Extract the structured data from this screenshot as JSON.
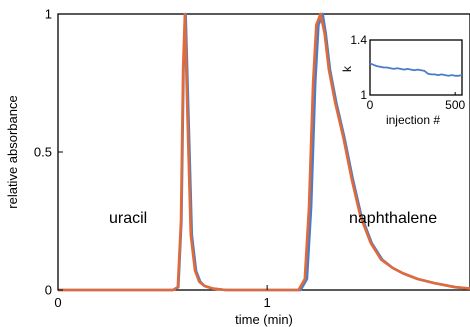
{
  "chart_data": [
    {
      "type": "line",
      "title": "",
      "xlabel": "time (min)",
      "ylabel": "relative absorbance",
      "xlim": [
        0,
        1.97
      ],
      "ylim": [
        0,
        1
      ],
      "x_ticks": [
        {
          "value": 0,
          "label": "0"
        },
        {
          "value": 1,
          "label": "1"
        }
      ],
      "y_ticks": [
        {
          "value": 0,
          "label": "0"
        },
        {
          "value": 0.5,
          "label": "0.5"
        },
        {
          "value": 1,
          "label": "1"
        }
      ],
      "grid": false,
      "series_colors": [
        "#4a7dc9",
        "#e06a3a"
      ],
      "annotations": [
        {
          "text": "uracil",
          "x": 0.3,
          "y": 0.25
        },
        {
          "text": "naphthalene",
          "x": 1.86,
          "y": 0.25
        }
      ],
      "series": [
        {
          "color": "#4a7dc9",
          "x": [
            0,
            0.55,
            0.575,
            0.59,
            0.6,
            0.61,
            0.625,
            0.64,
            0.66,
            0.68,
            0.7,
            0.74,
            0.8,
            0.9,
            1.0,
            1.1,
            1.16,
            1.19,
            1.21,
            1.23,
            1.245,
            1.265,
            1.28,
            1.3,
            1.33,
            1.37,
            1.41,
            1.45,
            1.5,
            1.55,
            1.6,
            1.65,
            1.72,
            1.8,
            1.9,
            1.97
          ],
          "y": [
            0,
            0,
            0.01,
            0.25,
            0.8,
            1.0,
            0.6,
            0.2,
            0.07,
            0.03,
            0.015,
            0.005,
            0,
            0,
            0,
            0,
            0,
            0.04,
            0.3,
            0.75,
            0.96,
            1.0,
            0.93,
            0.8,
            0.68,
            0.55,
            0.4,
            0.27,
            0.17,
            0.11,
            0.08,
            0.06,
            0.04,
            0.025,
            0.01,
            0.005
          ]
        },
        {
          "color": "#e06a3a",
          "x": [
            0,
            0.55,
            0.573,
            0.588,
            0.598,
            0.607,
            0.62,
            0.635,
            0.655,
            0.675,
            0.7,
            0.74,
            0.8,
            0.9,
            1.0,
            1.1,
            1.15,
            1.18,
            1.2,
            1.22,
            1.235,
            1.255,
            1.275,
            1.295,
            1.325,
            1.365,
            1.405,
            1.445,
            1.495,
            1.545,
            1.6,
            1.65,
            1.72,
            1.8,
            1.9,
            1.97
          ],
          "y": [
            0,
            0,
            0.01,
            0.25,
            0.8,
            1.0,
            0.6,
            0.2,
            0.07,
            0.03,
            0.015,
            0.005,
            0,
            0,
            0,
            0,
            0,
            0.04,
            0.3,
            0.75,
            0.96,
            1.0,
            0.93,
            0.8,
            0.68,
            0.55,
            0.4,
            0.27,
            0.17,
            0.11,
            0.08,
            0.06,
            0.04,
            0.025,
            0.01,
            0.005
          ]
        }
      ]
    },
    {
      "type": "line",
      "title": "",
      "xlabel": "injection #",
      "ylabel": "k",
      "xlim": [
        0,
        540
      ],
      "ylim": [
        1,
        1.4
      ],
      "x_ticks": [
        {
          "value": 0,
          "label": "0"
        },
        {
          "value": 500,
          "label": "500"
        }
      ],
      "y_ticks": [
        {
          "value": 1,
          "label": "1"
        },
        {
          "value": 1.4,
          "label": "1.4"
        }
      ],
      "grid": false,
      "series": [
        {
          "color": "#4a7dc9",
          "x": [
            0,
            20,
            40,
            60,
            80,
            100,
            120,
            140,
            160,
            180,
            200,
            220,
            240,
            260,
            280,
            300,
            320,
            340,
            360,
            380,
            400,
            420,
            440,
            460,
            480,
            500,
            520,
            540
          ],
          "y": [
            1.23,
            1.22,
            1.21,
            1.205,
            1.2,
            1.2,
            1.195,
            1.19,
            1.195,
            1.19,
            1.185,
            1.19,
            1.185,
            1.18,
            1.185,
            1.18,
            1.175,
            1.155,
            1.15,
            1.15,
            1.145,
            1.15,
            1.145,
            1.14,
            1.145,
            1.14,
            1.14,
            1.145
          ]
        }
      ]
    }
  ]
}
